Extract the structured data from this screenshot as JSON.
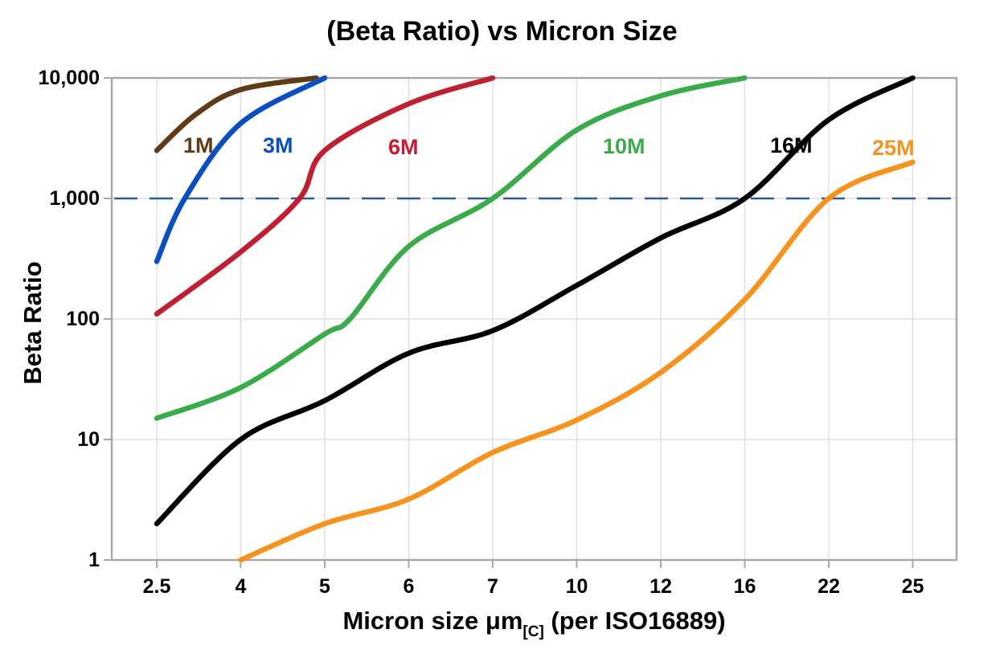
{
  "title": "(Beta Ratio) vs Micron Size",
  "chart_data": {
    "type": "line",
    "title": "(Beta Ratio) vs Micron Size",
    "ylabel": "Beta Ratio",
    "xlabel_parts": {
      "main": "Micron size μm",
      "sub": "[C]",
      "tail": " (per ISO16889)"
    },
    "x_scale": "categorical",
    "y_scale": "log",
    "x_categories": [
      2.5,
      4,
      5,
      6,
      7,
      10,
      12,
      16,
      22,
      25
    ],
    "x_tick_labels": [
      "2.5",
      "4",
      "5",
      "6",
      "7",
      "10",
      "12",
      "16",
      "22",
      "25"
    ],
    "y_ticks": [
      1,
      10,
      100,
      1000,
      10000
    ],
    "y_tick_labels": [
      "1",
      "10",
      "100",
      "1,000",
      "10,000"
    ],
    "ylim": [
      1,
      10000
    ],
    "grid": true,
    "legend_position": "inline-curve-labels",
    "colors": {
      "grid": "#e0e0e0",
      "frame": "#a9a9a9",
      "text": "#000000"
    },
    "reference_line": {
      "y": 1000,
      "style": "dashed",
      "color": "#2e5a8f"
    },
    "series": [
      {
        "name": "1M",
        "color": "#5e3a17",
        "label_pos": [
          228,
          190
        ],
        "points": [
          [
            2.5,
            2500
          ],
          [
            3.2,
            5000
          ],
          [
            4,
            8000
          ],
          [
            4.9,
            10000
          ]
        ]
      },
      {
        "name": "3M",
        "color": "#0a4fc0",
        "label_pos": [
          327,
          190
        ],
        "points": [
          [
            2.5,
            300
          ],
          [
            3,
            1000
          ],
          [
            4,
            4200
          ],
          [
            5,
            10000
          ]
        ]
      },
      {
        "name": "6M",
        "color": "#c01f32",
        "label_pos": [
          483,
          192
        ],
        "points": [
          [
            2.5,
            110
          ],
          [
            4,
            360
          ],
          [
            4.7,
            1000
          ],
          [
            5,
            2500
          ],
          [
            6,
            6100
          ],
          [
            7,
            10000
          ]
        ]
      },
      {
        "name": "10M",
        "color": "#3aab4a",
        "label_pos": [
          750,
          191
        ],
        "points": [
          [
            2.5,
            15
          ],
          [
            4,
            27
          ],
          [
            5,
            75
          ],
          [
            5.3,
            100
          ],
          [
            6,
            400
          ],
          [
            7,
            1000
          ],
          [
            10,
            3700
          ],
          [
            12,
            7100
          ],
          [
            16,
            10000
          ]
        ]
      },
      {
        "name": "16M",
        "color": "#000000",
        "label_pos": [
          958,
          190
        ],
        "points": [
          [
            2.5,
            2
          ],
          [
            4,
            10
          ],
          [
            5,
            21
          ],
          [
            6,
            52
          ],
          [
            7,
            80
          ],
          [
            10,
            190
          ],
          [
            12,
            470
          ],
          [
            16,
            1000
          ],
          [
            22,
            4500
          ],
          [
            25,
            10000
          ]
        ]
      },
      {
        "name": "25M",
        "color": "#f6921e",
        "label_pos": [
          1085,
          193
        ],
        "points": [
          [
            4,
            1
          ],
          [
            5,
            2
          ],
          [
            6,
            3.2
          ],
          [
            7,
            7.8
          ],
          [
            10,
            14.5
          ],
          [
            12,
            36
          ],
          [
            16,
            145
          ],
          [
            22,
            1000
          ],
          [
            25,
            2000
          ]
        ]
      }
    ]
  }
}
